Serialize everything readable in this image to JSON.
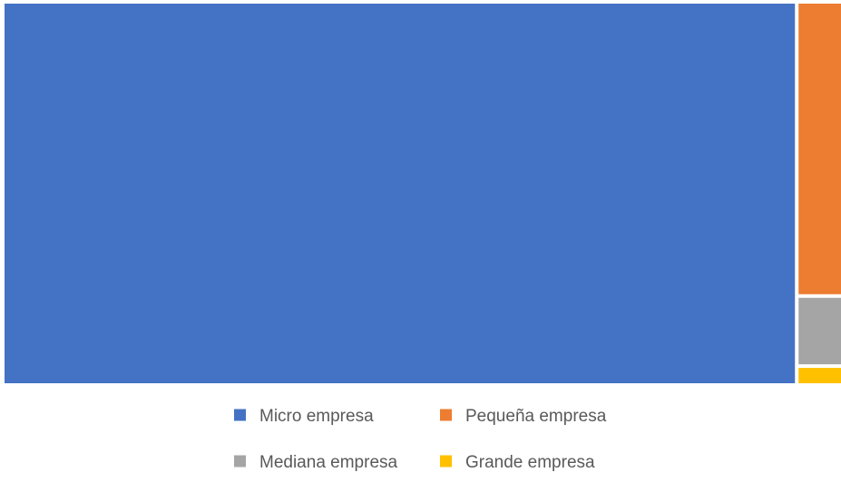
{
  "chart_data": {
    "type": "treemap",
    "title": "",
    "items": [
      {
        "name": "Micro empresa",
        "value": 95.0,
        "color": "#4472C4"
      },
      {
        "name": "Pequeña empresa",
        "value": 3.98,
        "color": "#ED7D31"
      },
      {
        "name": "Mediana empresa",
        "value": 0.91,
        "color": "#A5A5A5"
      },
      {
        "name": "Grande empresa",
        "value": 0.21,
        "color": "#FFC000"
      }
    ],
    "legend": {
      "position": "bottom",
      "entries": [
        "Micro empresa",
        "Pequeña empresa",
        "Mediana empresa",
        "Grande empresa"
      ]
    }
  }
}
